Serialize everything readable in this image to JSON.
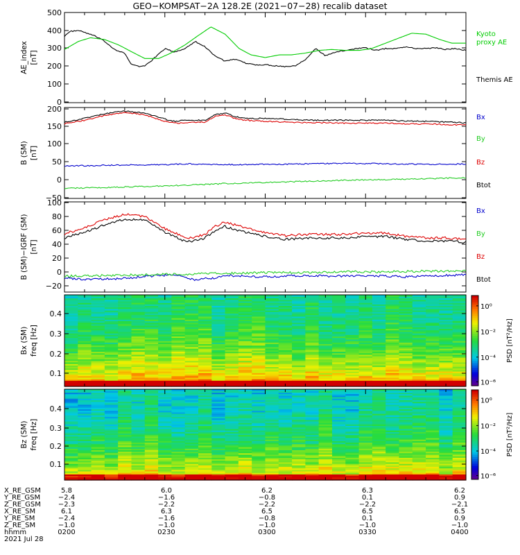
{
  "title": "GEO−KOMPSAT−2A 128.2E (2021−07−28) recalib dataset",
  "colors": {
    "black": "#000000",
    "red": "#dd0000",
    "green": "#22cc22",
    "blue": "#0000cc",
    "kyoto": "#00cc00"
  },
  "chart_data": [
    {
      "type": "line",
      "ylabel": [
        "AE_index",
        "[nT]"
      ],
      "ylim": [
        0,
        500
      ],
      "yticks": [
        "0",
        "100",
        "200",
        "300",
        "400",
        "500"
      ],
      "legend": [
        {
          "text": "Kyoto",
          "color": "kyoto"
        },
        {
          "text": "proxy AE",
          "color": "kyoto"
        },
        {
          "text": "Themis AE",
          "color": "black"
        }
      ],
      "x_hours": [
        2.0,
        4.0
      ],
      "series": [
        {
          "name": "Themis AE",
          "color": "black",
          "t": [
            2.0,
            2.03,
            2.07,
            2.1,
            2.15,
            2.2,
            2.25,
            2.3,
            2.33,
            2.37,
            2.4,
            2.43,
            2.47,
            2.5,
            2.55,
            2.6,
            2.65,
            2.7,
            2.75,
            2.8,
            2.85,
            2.9,
            2.95,
            3.0,
            3.05,
            3.1,
            3.15,
            3.2,
            3.25,
            3.3,
            3.35,
            3.4,
            3.45,
            3.5,
            3.55,
            3.6,
            3.65,
            3.7,
            3.75,
            3.8,
            3.85,
            3.9,
            3.95,
            4.0
          ],
          "v": [
            370,
            395,
            400,
            390,
            370,
            340,
            295,
            275,
            215,
            200,
            205,
            230,
            270,
            300,
            280,
            300,
            340,
            310,
            260,
            230,
            240,
            220,
            210,
            210,
            205,
            200,
            205,
            240,
            300,
            260,
            280,
            290,
            300,
            305,
            290,
            300,
            300,
            310,
            300,
            300,
            305,
            295,
            300,
            290
          ]
        },
        {
          "name": "Kyoto proxy AE",
          "color": "kyoto",
          "t": [
            2.0,
            2.07,
            2.13,
            2.2,
            2.27,
            2.33,
            2.4,
            2.47,
            2.53,
            2.6,
            2.67,
            2.73,
            2.8,
            2.87,
            2.93,
            3.0,
            3.07,
            3.13,
            3.2,
            3.27,
            3.33,
            3.4,
            3.47,
            3.53,
            3.6,
            3.67,
            3.73,
            3.8,
            3.87,
            3.93,
            4.0
          ],
          "v": [
            295,
            340,
            360,
            350,
            320,
            285,
            245,
            245,
            275,
            320,
            375,
            420,
            380,
            300,
            265,
            250,
            265,
            265,
            275,
            290,
            295,
            290,
            290,
            300,
            330,
            360,
            385,
            380,
            350,
            330,
            330
          ]
        }
      ]
    },
    {
      "type": "line",
      "ylabel": [
        "B (SM)",
        "[nT]"
      ],
      "ylim": [
        -50,
        200
      ],
      "yticks": [
        "−50",
        "0",
        "50",
        "100",
        "150",
        "200"
      ],
      "legend": [
        {
          "text": "Bx",
          "color": "blue"
        },
        {
          "text": "By",
          "color": "green"
        },
        {
          "text": "Bz",
          "color": "red"
        },
        {
          "text": "Btot",
          "color": "black"
        }
      ],
      "x_hours": [
        2.0,
        4.0
      ],
      "series": [
        {
          "name": "Btot",
          "color": "black",
          "t": [
            2.0,
            2.1,
            2.2,
            2.3,
            2.4,
            2.5,
            2.55,
            2.6,
            2.7,
            2.75,
            2.8,
            2.85,
            2.9,
            3.0,
            3.1,
            3.2,
            3.3,
            3.4,
            3.5,
            3.6,
            3.7,
            3.8,
            3.9,
            4.0
          ],
          "v": [
            160,
            170,
            183,
            190,
            185,
            168,
            162,
            165,
            165,
            180,
            185,
            175,
            170,
            170,
            168,
            165,
            165,
            165,
            165,
            165,
            163,
            162,
            160,
            158
          ]
        },
        {
          "name": "Bz",
          "color": "red",
          "t": [
            2.0,
            2.1,
            2.2,
            2.3,
            2.4,
            2.5,
            2.55,
            2.6,
            2.7,
            2.75,
            2.8,
            2.85,
            2.9,
            3.0,
            3.1,
            3.2,
            3.3,
            3.4,
            3.5,
            3.6,
            3.7,
            3.8,
            3.9,
            4.0
          ],
          "v": [
            155,
            165,
            178,
            186,
            180,
            162,
            157,
            158,
            160,
            175,
            180,
            170,
            165,
            162,
            160,
            158,
            158,
            157,
            157,
            157,
            155,
            155,
            153,
            152
          ]
        },
        {
          "name": "Bx",
          "color": "blue",
          "t": [
            2.0,
            2.1,
            2.2,
            2.3,
            2.4,
            2.5,
            2.6,
            2.7,
            2.8,
            2.9,
            3.0,
            3.1,
            3.2,
            3.3,
            3.4,
            3.5,
            3.6,
            3.7,
            3.8,
            3.9,
            4.0
          ],
          "v": [
            40,
            40,
            41,
            42,
            42,
            43,
            45,
            44,
            43,
            43,
            44,
            44,
            45,
            46,
            46,
            46,
            45,
            45,
            44,
            44,
            45
          ]
        },
        {
          "name": "By",
          "color": "green",
          "t": [
            2.0,
            2.2,
            2.4,
            2.6,
            2.8,
            3.0,
            3.2,
            3.4,
            3.6,
            3.8,
            4.0
          ],
          "v": [
            -22,
            -20,
            -17,
            -14,
            -9,
            -6,
            -3,
            0,
            2,
            4,
            7
          ]
        }
      ]
    },
    {
      "type": "line",
      "ylabel": [
        "B (SM)−IGRF (SM)",
        "[nT]"
      ],
      "ylim": [
        -25,
        100
      ],
      "yticks": [
        "−20",
        "0",
        "20",
        "40",
        "60",
        "80",
        "100"
      ],
      "legend": [
        {
          "text": "Bx",
          "color": "blue"
        },
        {
          "text": "By",
          "color": "green"
        },
        {
          "text": "Bz",
          "color": "red"
        },
        {
          "text": "Btot",
          "color": "black"
        }
      ],
      "x_hours": [
        2.0,
        4.0
      ],
      "series": [
        {
          "name": "Btot",
          "color": "black",
          "t": [
            2.0,
            2.1,
            2.2,
            2.3,
            2.4,
            2.5,
            2.55,
            2.6,
            2.65,
            2.7,
            2.75,
            2.8,
            2.85,
            2.9,
            3.0,
            3.1,
            3.2,
            3.3,
            3.4,
            3.5,
            3.6,
            3.7,
            3.8,
            3.9,
            4.0
          ],
          "v": [
            50,
            58,
            68,
            76,
            75,
            58,
            52,
            45,
            46,
            50,
            60,
            66,
            62,
            58,
            52,
            48,
            50,
            50,
            50,
            52,
            52,
            48,
            46,
            46,
            44
          ]
        },
        {
          "name": "Bz",
          "color": "red",
          "t": [
            2.0,
            2.1,
            2.2,
            2.3,
            2.4,
            2.5,
            2.55,
            2.6,
            2.65,
            2.7,
            2.75,
            2.8,
            2.85,
            2.9,
            3.0,
            3.1,
            3.2,
            3.3,
            3.4,
            3.5,
            3.6,
            3.7,
            3.8,
            3.9,
            4.0
          ],
          "v": [
            56,
            64,
            75,
            83,
            80,
            63,
            57,
            50,
            51,
            55,
            66,
            72,
            68,
            64,
            57,
            53,
            55,
            55,
            55,
            57,
            57,
            52,
            50,
            50,
            48
          ]
        },
        {
          "name": "Bx",
          "color": "blue",
          "t": [
            2.0,
            2.1,
            2.2,
            2.3,
            2.4,
            2.5,
            2.55,
            2.6,
            2.65,
            2.7,
            2.75,
            2.8,
            2.9,
            3.0,
            3.1,
            3.2,
            3.3,
            3.4,
            3.5,
            3.6,
            3.7,
            3.8,
            3.9,
            4.0
          ],
          "v": [
            -5,
            -8,
            -7,
            -6,
            -3,
            -2,
            0,
            -4,
            -8,
            -5,
            -6,
            -2,
            -3,
            -4,
            -3,
            -2,
            -3,
            -3,
            -2,
            -3,
            -4,
            -3,
            -2,
            -1
          ]
        },
        {
          "name": "By",
          "color": "green",
          "t": [
            2.0,
            2.2,
            2.4,
            2.6,
            2.8,
            3.0,
            3.2,
            3.4,
            3.6,
            3.8,
            4.0
          ],
          "v": [
            -3,
            -2,
            -1,
            0,
            1,
            2,
            2,
            3,
            3,
            4,
            4
          ]
        }
      ]
    },
    {
      "type": "heatmap",
      "ylabel": [
        "Bx (SM)",
        "freq [Hz]"
      ],
      "ylim": [
        0,
        0.5
      ],
      "yticks": [
        "0.1",
        "0.2",
        "0.3",
        "0.4"
      ],
      "colorbar": {
        "label": "PSD [nT²/Hz]",
        "ticks": [
          "10⁰",
          "10⁻²",
          "10⁻⁴",
          "10⁻⁶"
        ]
      }
    },
    {
      "type": "heatmap",
      "ylabel": [
        "Bz (SM)",
        "freq [Hz]"
      ],
      "ylim": [
        0,
        0.5
      ],
      "yticks": [
        "0.1",
        "0.2",
        "0.3",
        "0.4"
      ],
      "colorbar": {
        "label": "PSD [nT²/Hz]",
        "ticks": [
          "10⁰",
          "10⁻²",
          "10⁻⁴",
          "10⁻⁶"
        ]
      }
    }
  ],
  "ephemeris": {
    "labels": [
      "X_RE_GSM",
      "Y_RE_GSM",
      "Z_RE_GSM",
      "X_RE_SM",
      "Y_RE_SM",
      "Z_RE_SM",
      "hhmm",
      "2021 Jul 28"
    ],
    "columns": [
      {
        "values": [
          "5.8",
          "−2.4",
          "−2.3",
          "6.1",
          "−2.4",
          "−1.0",
          "0200"
        ]
      },
      {
        "values": [
          "6.0",
          "−1.6",
          "−2.2",
          "6.3",
          "−1.6",
          "−1.0",
          "0230"
        ]
      },
      {
        "values": [
          "6.2",
          "−0.8",
          "−2.2",
          "6.5",
          "−0.8",
          "−1.0",
          "0300"
        ]
      },
      {
        "values": [
          "6.3",
          "0.1",
          "−2.2",
          "6.5",
          "0.1",
          "−1.0",
          "0330"
        ]
      },
      {
        "values": [
          "6.2",
          "0.9",
          "−2.1",
          "6.5",
          "0.9",
          "−1.0",
          "0400"
        ]
      }
    ]
  }
}
